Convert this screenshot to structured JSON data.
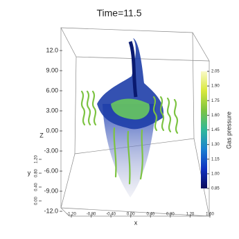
{
  "chart_data": {
    "type": "volume3d",
    "title": "Time=11.5",
    "xlabel": "x",
    "ylabel": "y",
    "zlabel": "Z",
    "xlim": [
      -1.2,
      1.6
    ],
    "xticks": [
      {
        "value": -1.2,
        "label": "-1.20"
      },
      {
        "value": -0.8,
        "label": "-0.80"
      },
      {
        "value": -0.4,
        "label": "-0.40"
      },
      {
        "value": 0,
        "label": "0.00"
      },
      {
        "value": 0.4,
        "label": "0.40"
      },
      {
        "value": 0.8,
        "label": "0.80"
      },
      {
        "value": 1.2,
        "label": "1.20"
      },
      {
        "value": 1.6,
        "label": "1.60"
      }
    ],
    "ylim": [
      0,
      1.2
    ],
    "yticks": [
      {
        "value": 0,
        "label": "0.00"
      },
      {
        "value": 0.4,
        "label": "0.40"
      },
      {
        "value": 0.8,
        "label": "0.80"
      },
      {
        "value": 1.2,
        "label": "1.20"
      }
    ],
    "zlim": [
      -12,
      12
    ],
    "zticks": [
      {
        "value": 12,
        "label": "12.0"
      },
      {
        "value": 9,
        "label": "9.00"
      },
      {
        "value": 6,
        "label": "6.00"
      },
      {
        "value": 3,
        "label": "3.00"
      },
      {
        "value": 0,
        "label": "0.00"
      },
      {
        "value": -3,
        "label": "-3.00"
      },
      {
        "value": -6,
        "label": "-6.00"
      },
      {
        "value": -9,
        "label": "-9.00"
      },
      {
        "value": -12,
        "label": "-12.0"
      }
    ],
    "colorbar": {
      "label": "Gas pressure",
      "lim": [
        0.85,
        2.05
      ],
      "ticks": [
        0.85,
        {
          "value": 1,
          "label": "1.00"
        },
        1.15,
        {
          "value": 1.3,
          "label": "1.30"
        },
        1.45,
        {
          "value": 1.6,
          "label": "1.60"
        },
        1.75,
        {
          "value": 1.9,
          "label": "1.90"
        },
        2.05
      ],
      "colors": [
        "#0a0a5a",
        "#1030c0",
        "#1a7fd0",
        "#2fb89a",
        "#7cc341",
        "#d8e83a",
        "#fafac8"
      ]
    }
  }
}
